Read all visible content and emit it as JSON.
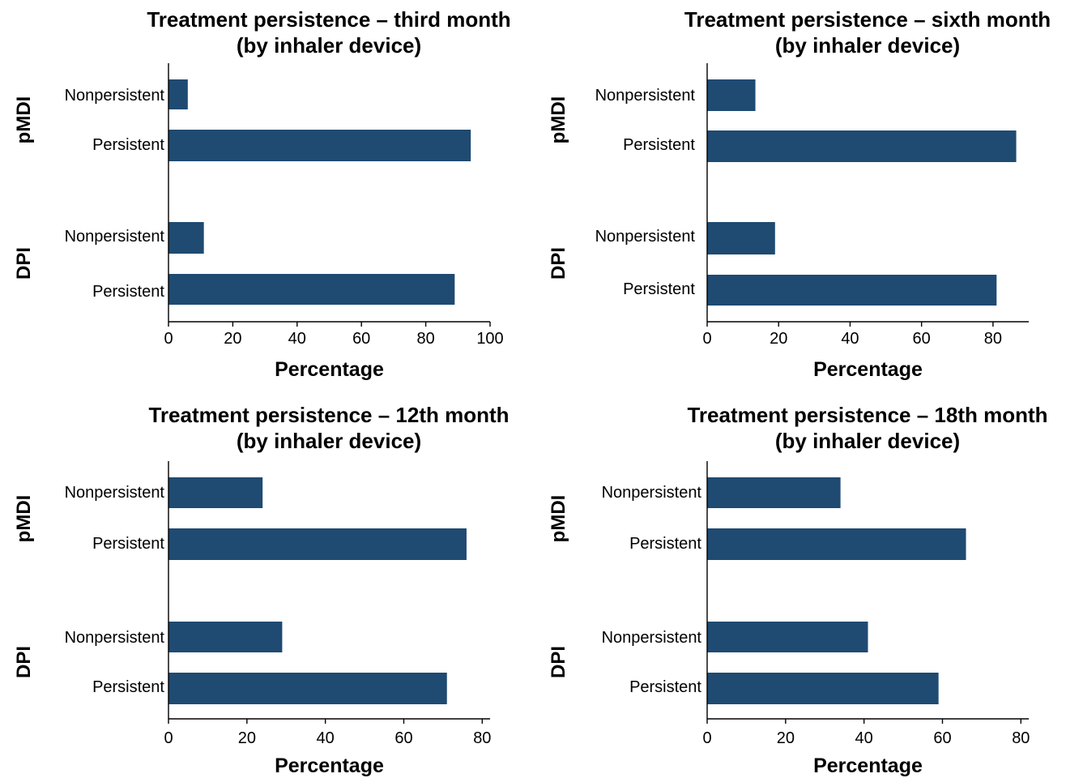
{
  "colors": {
    "bar": "#1f4a72",
    "axis": "#000000"
  },
  "chart_data": [
    {
      "type": "bar",
      "orientation": "horizontal",
      "title": [
        "Treatment persistence – third month",
        "(by inhaler device)"
      ],
      "xlabel": "Percentage",
      "xlim": [
        0,
        100
      ],
      "xticks": [
        0,
        20,
        40,
        60,
        80,
        100
      ],
      "groups": [
        {
          "name": "pMDI",
          "categories": [
            "Nonpersistent",
            "Persistent"
          ],
          "values": [
            6,
            94
          ]
        },
        {
          "name": "DPI",
          "categories": [
            "Nonpersistent",
            "Persistent"
          ],
          "values": [
            11,
            89
          ]
        }
      ]
    },
    {
      "type": "bar",
      "orientation": "horizontal",
      "title": [
        "Treatment persistence – sixth month",
        "(by inhaler device)"
      ],
      "xlabel": "Percentage",
      "xlim": [
        0,
        90
      ],
      "xticks": [
        0,
        20,
        40,
        60,
        80
      ],
      "groups": [
        {
          "name": "pMDI",
          "categories": [
            "Nonpersistent",
            "Persistent"
          ],
          "values": [
            13.5,
            86.5
          ]
        },
        {
          "name": "DPI",
          "categories": [
            "Nonpersistent",
            "Persistent"
          ],
          "values": [
            19,
            81
          ]
        }
      ]
    },
    {
      "type": "bar",
      "orientation": "horizontal",
      "title": [
        "Treatment persistence – 12th month",
        "(by inhaler device)"
      ],
      "xlabel": "Percentage",
      "xlim": [
        0,
        82
      ],
      "xticks": [
        0,
        20,
        40,
        60,
        80
      ],
      "groups": [
        {
          "name": "pMDI",
          "categories": [
            "Nonpersistent",
            "Persistent"
          ],
          "values": [
            24,
            76
          ]
        },
        {
          "name": "DPI",
          "categories": [
            "Nonpersistent",
            "Persistent"
          ],
          "values": [
            29,
            71
          ]
        }
      ]
    },
    {
      "type": "bar",
      "orientation": "horizontal",
      "title": [
        "Treatment persistence – 18th month",
        "(by inhaler device)"
      ],
      "xlabel": "Percentage",
      "xlim": [
        0,
        82
      ],
      "xticks": [
        0,
        20,
        40,
        60,
        80
      ],
      "groups": [
        {
          "name": "pMDI",
          "categories": [
            "Nonpersistent",
            "Persistent"
          ],
          "values": [
            34,
            66
          ]
        },
        {
          "name": "DPI",
          "categories": [
            "Nonpersistent",
            "Persistent"
          ],
          "values": [
            41,
            59
          ]
        }
      ]
    }
  ]
}
